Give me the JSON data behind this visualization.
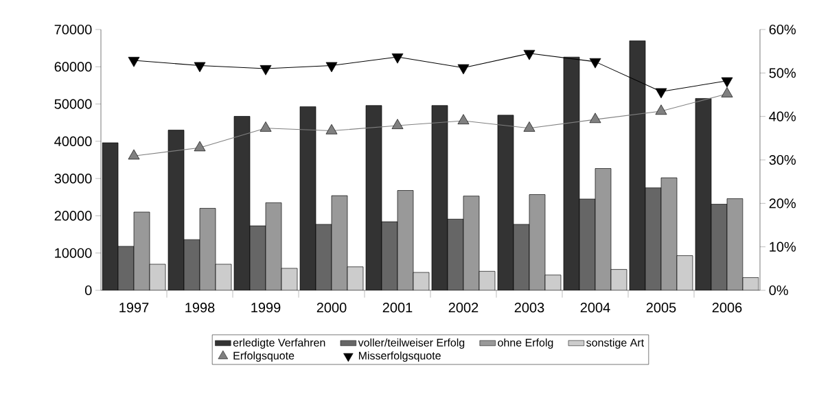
{
  "chart_data": {
    "type": "bar",
    "categories": [
      "1997",
      "1998",
      "1999",
      "2000",
      "2001",
      "2002",
      "2003",
      "2004",
      "2005",
      "2006"
    ],
    "series": [
      {
        "name": "erledigte Verfahren",
        "color": "#333333",
        "values": [
          39600,
          43000,
          46700,
          49300,
          49600,
          49600,
          47000,
          62600,
          67000,
          51500
        ]
      },
      {
        "name": "voller/teilweiser Erfolg",
        "color": "#666666",
        "values": [
          11800,
          13600,
          17300,
          17700,
          18400,
          19100,
          17700,
          24500,
          27500,
          23100
        ]
      },
      {
        "name": "ohne Erfolg",
        "color": "#999999",
        "values": [
          21000,
          22000,
          23500,
          25400,
          26800,
          25300,
          25700,
          32700,
          30200,
          24600
        ]
      },
      {
        "name": "sonstige Art",
        "color": "#cccccc",
        "values": [
          7000,
          7000,
          5900,
          6300,
          4800,
          5100,
          4100,
          5600,
          9300,
          3400
        ]
      },
      {
        "name": "Erfolgsquote",
        "type": "line",
        "axis": "y2",
        "color": "#808080",
        "marker": "triangle",
        "values": [
          30.9,
          32.8,
          37.3,
          36.7,
          37.9,
          39.0,
          37.3,
          39.3,
          41.2,
          45.2
        ]
      },
      {
        "name": "Misserfolgsquote",
        "type": "line",
        "axis": "y2",
        "color": "#000000",
        "marker": "triangle-down",
        "values": [
          52.9,
          51.7,
          51.0,
          51.7,
          53.7,
          51.2,
          54.5,
          52.6,
          45.7,
          48.2
        ]
      }
    ],
    "ylim": [
      0,
      70000
    ],
    "yticks": [
      0,
      10000,
      20000,
      30000,
      40000,
      50000,
      60000,
      70000
    ],
    "y2lim": [
      0,
      60
    ],
    "y2ticks": [
      {
        "value": 0,
        "label": "0%"
      },
      {
        "value": 10,
        "label": "10%"
      },
      {
        "value": 20,
        "label": "20%"
      },
      {
        "value": 30,
        "label": "30%"
      },
      {
        "value": 40,
        "label": "40%"
      },
      {
        "value": 50,
        "label": "50%"
      },
      {
        "value": 60,
        "label": "60%"
      }
    ],
    "legend": "bottom"
  }
}
